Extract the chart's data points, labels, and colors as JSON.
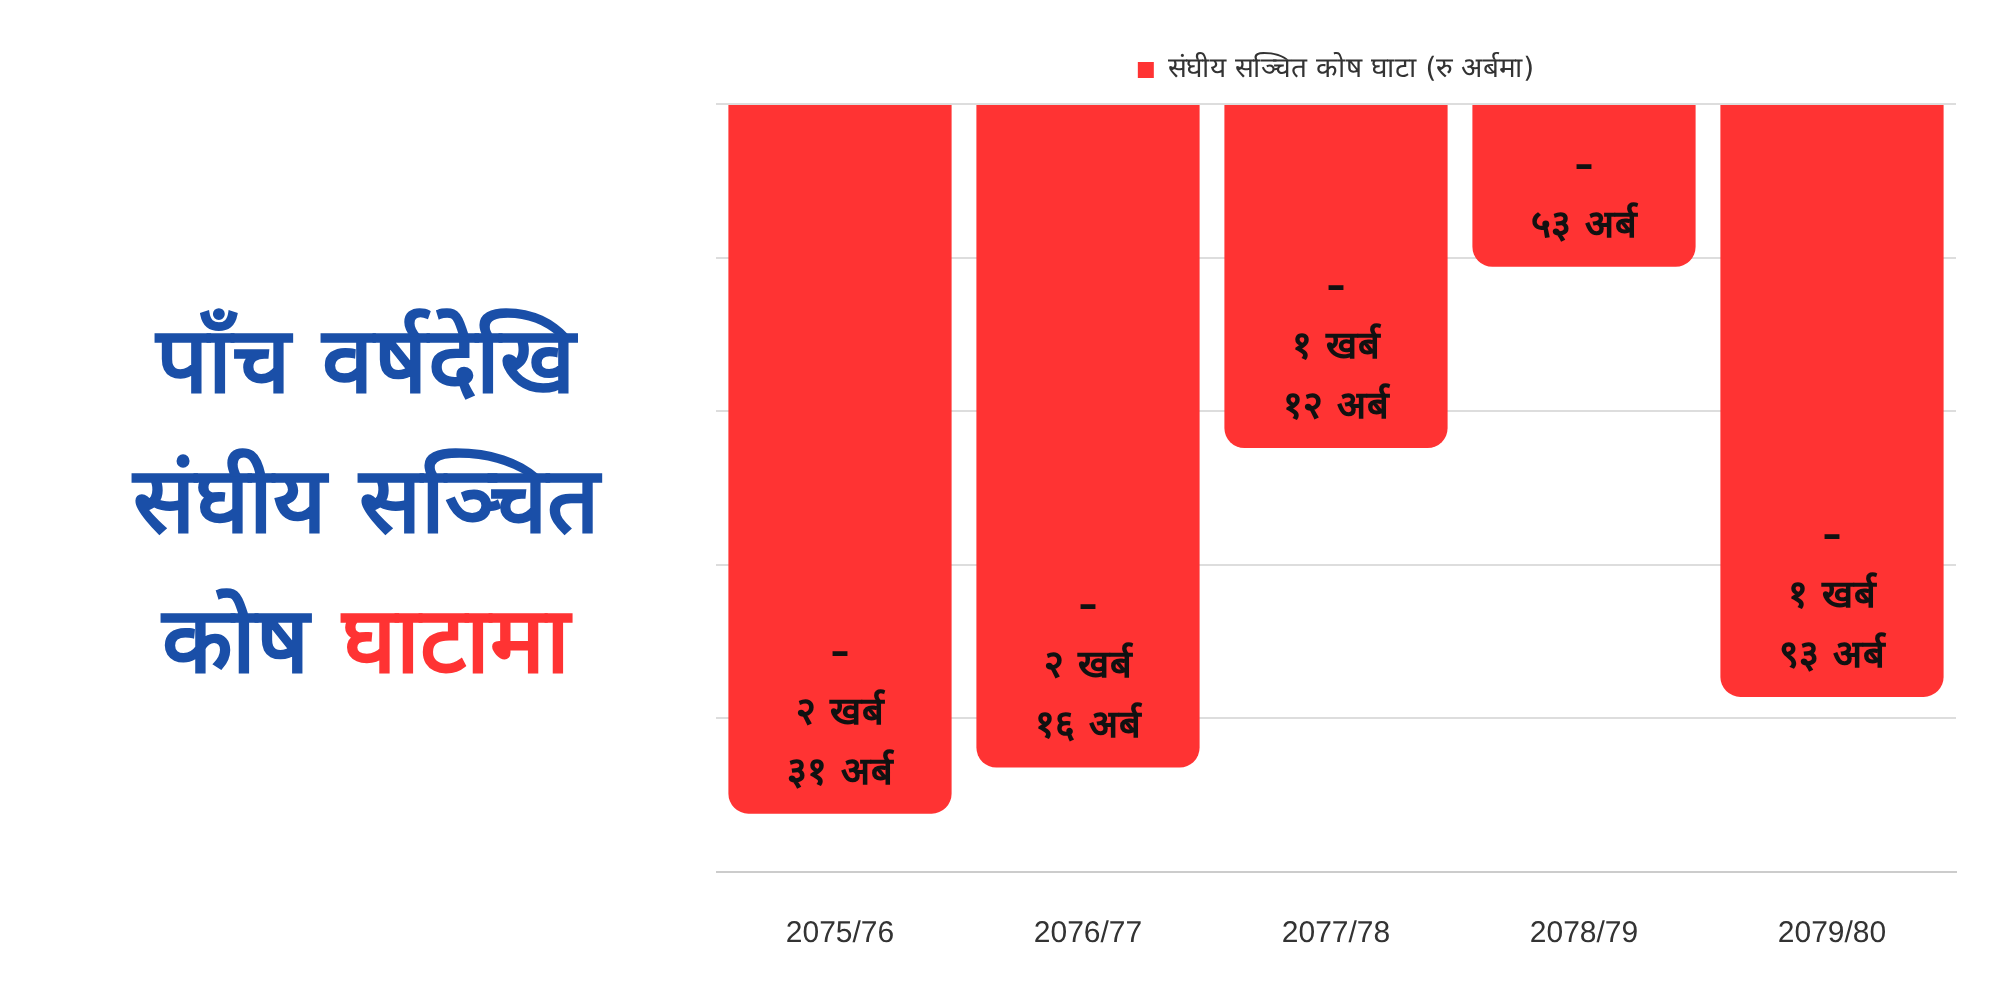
{
  "chart_data": {
    "type": "bar",
    "title": "पाँच वर्षदेखि संघीय सञ्चित कोष घाटामा",
    "categories": [
      "2075/76",
      "2076/77",
      "2077/78",
      "2078/79",
      "2079/80"
    ],
    "series": [
      {
        "name": "संघीय सञ्चित कोष घाटा (रु अर्बमा)",
        "color": "#ff3333",
        "values": [
          -231,
          -216,
          -112,
          -53,
          -193
        ],
        "value_labels": [
          "–\n२ खर्ब\n३१ अर्ब",
          "–\n२ खर्ब\n१६ अर्ब",
          "–\n१ खर्ब\n१२ अर्ब",
          "–\n५३ अर्ब",
          "–\n१ खर्ब\n९३ अर्ब"
        ]
      }
    ],
    "ylim": [
      -250,
      0
    ],
    "yticks": [
      {
        "value": -250,
        "label": null
      },
      {
        "value": -200,
        "label": null
      },
      {
        "value": -150,
        "label": null
      },
      {
        "value": -100,
        "label": null
      },
      {
        "value": -50,
        "label": null
      },
      {
        "value": 0,
        "label": null
      }
    ],
    "tick_labels": "x",
    "grid": "y",
    "legend": "top"
  }
}
